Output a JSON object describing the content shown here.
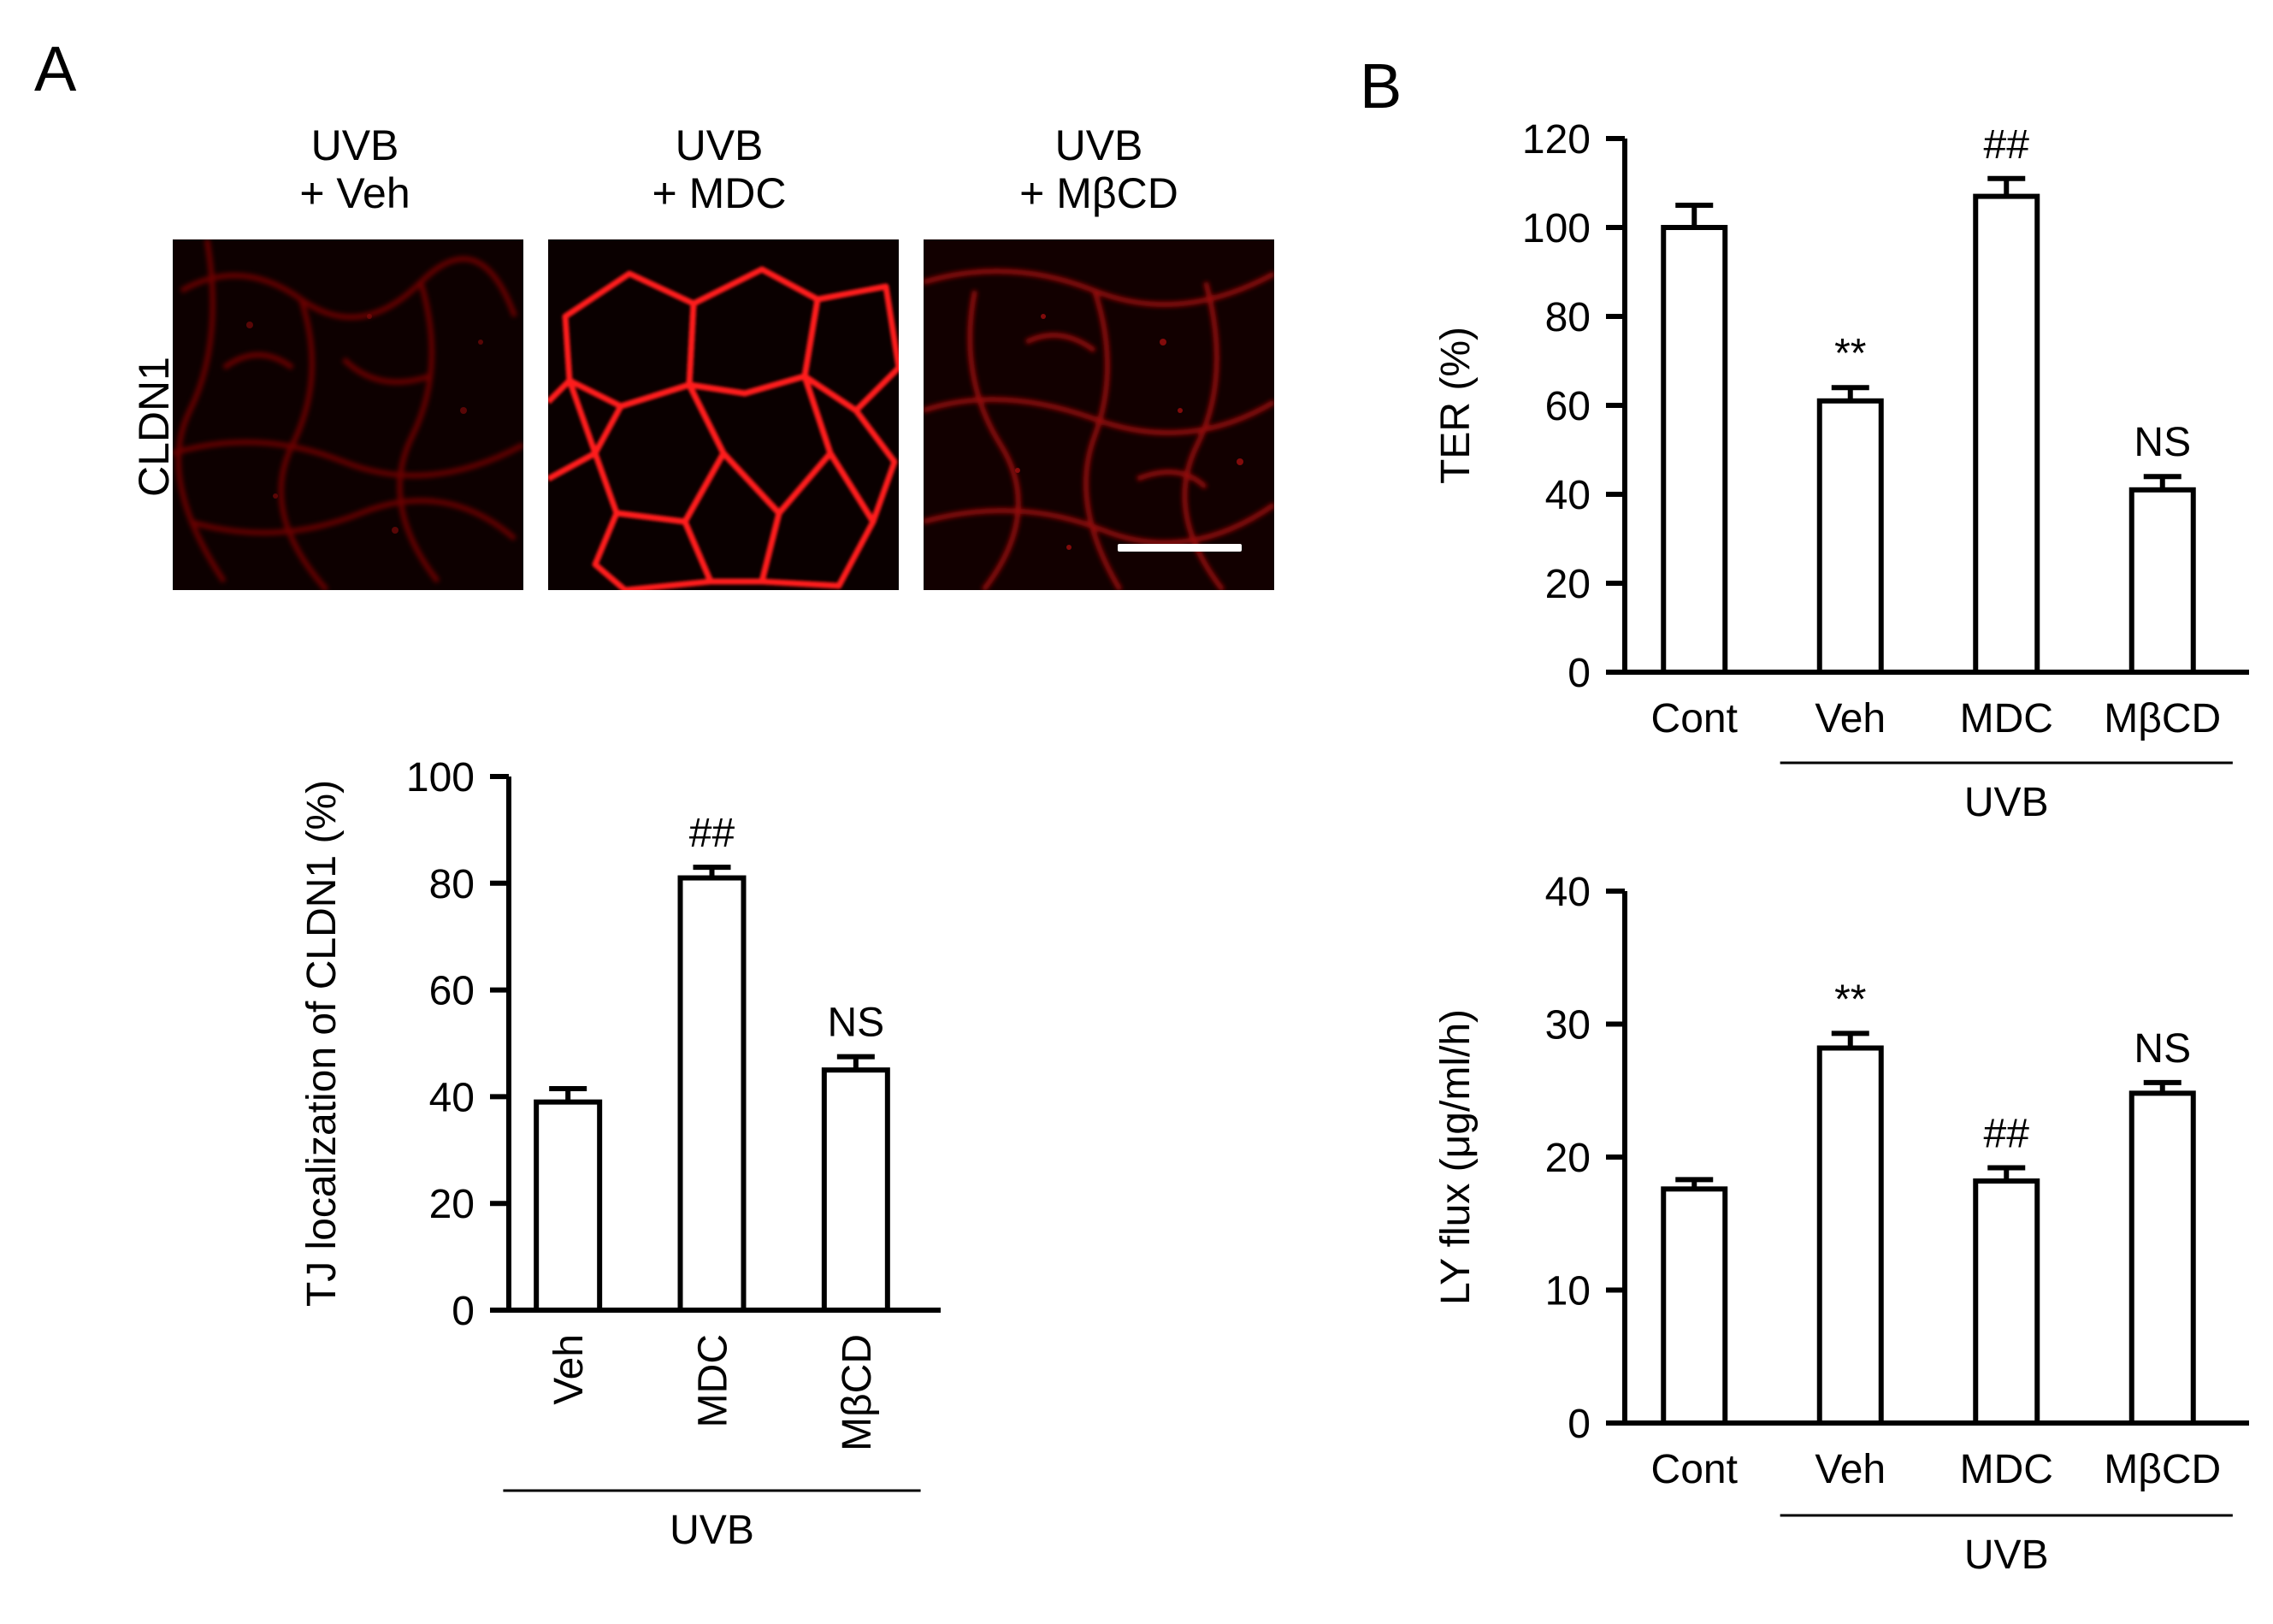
{
  "panels": {
    "a_label": "A",
    "b_label": "B"
  },
  "micrographs": {
    "row_label": "CLDN1",
    "titles": [
      [
        "UVB",
        "+ Veh"
      ],
      [
        "UVB",
        "+ MDC"
      ],
      [
        "UVB",
        "+ MβCD"
      ]
    ],
    "stain_color": "#ff1a1a"
  },
  "chart_data": [
    {
      "id": "tj_localization",
      "type": "bar",
      "ylabel": "TJ localization of CLDN1 (%)",
      "categories": [
        "Veh",
        "MDC",
        "MβCD"
      ],
      "category_label_rotation": "vertical",
      "group_label": "UVB",
      "group_span": [
        "Veh",
        "MβCD"
      ],
      "values": [
        39,
        81,
        45
      ],
      "errors": [
        2.5,
        2,
        2.5
      ],
      "annotations": [
        "",
        "##",
        "NS"
      ],
      "ylim": [
        0,
        100
      ],
      "yticks": [
        0,
        20,
        40,
        60,
        80,
        100
      ],
      "bar_fill": "#ffffff",
      "grid": false
    },
    {
      "id": "ter",
      "type": "bar",
      "ylabel": "TER (%)",
      "categories": [
        "Cont",
        "Veh",
        "MDC",
        "MβCD"
      ],
      "group_label": "UVB",
      "group_span": [
        "Veh",
        "MβCD"
      ],
      "values": [
        100,
        61,
        107,
        41
      ],
      "errors": [
        5,
        3,
        4,
        3
      ],
      "annotations": [
        "",
        "**",
        "##",
        "NS"
      ],
      "ylim": [
        0,
        120
      ],
      "yticks": [
        0,
        20,
        40,
        60,
        80,
        100,
        120
      ],
      "bar_fill": "#ffffff",
      "grid": false
    },
    {
      "id": "ly_flux",
      "type": "bar",
      "ylabel": "LY flux (μg/ml/h)",
      "categories": [
        "Cont",
        "Veh",
        "MDC",
        "MβCD"
      ],
      "group_label": "UVB",
      "group_span": [
        "Veh",
        "MβCD"
      ],
      "values": [
        17.6,
        28.2,
        18.2,
        24.8
      ],
      "errors": [
        0.7,
        1.1,
        1.0,
        0.8
      ],
      "annotations": [
        "",
        "**",
        "##",
        "NS"
      ],
      "ylim": [
        0,
        40
      ],
      "yticks": [
        0,
        10,
        20,
        30,
        40
      ],
      "bar_fill": "#ffffff",
      "grid": false
    }
  ]
}
